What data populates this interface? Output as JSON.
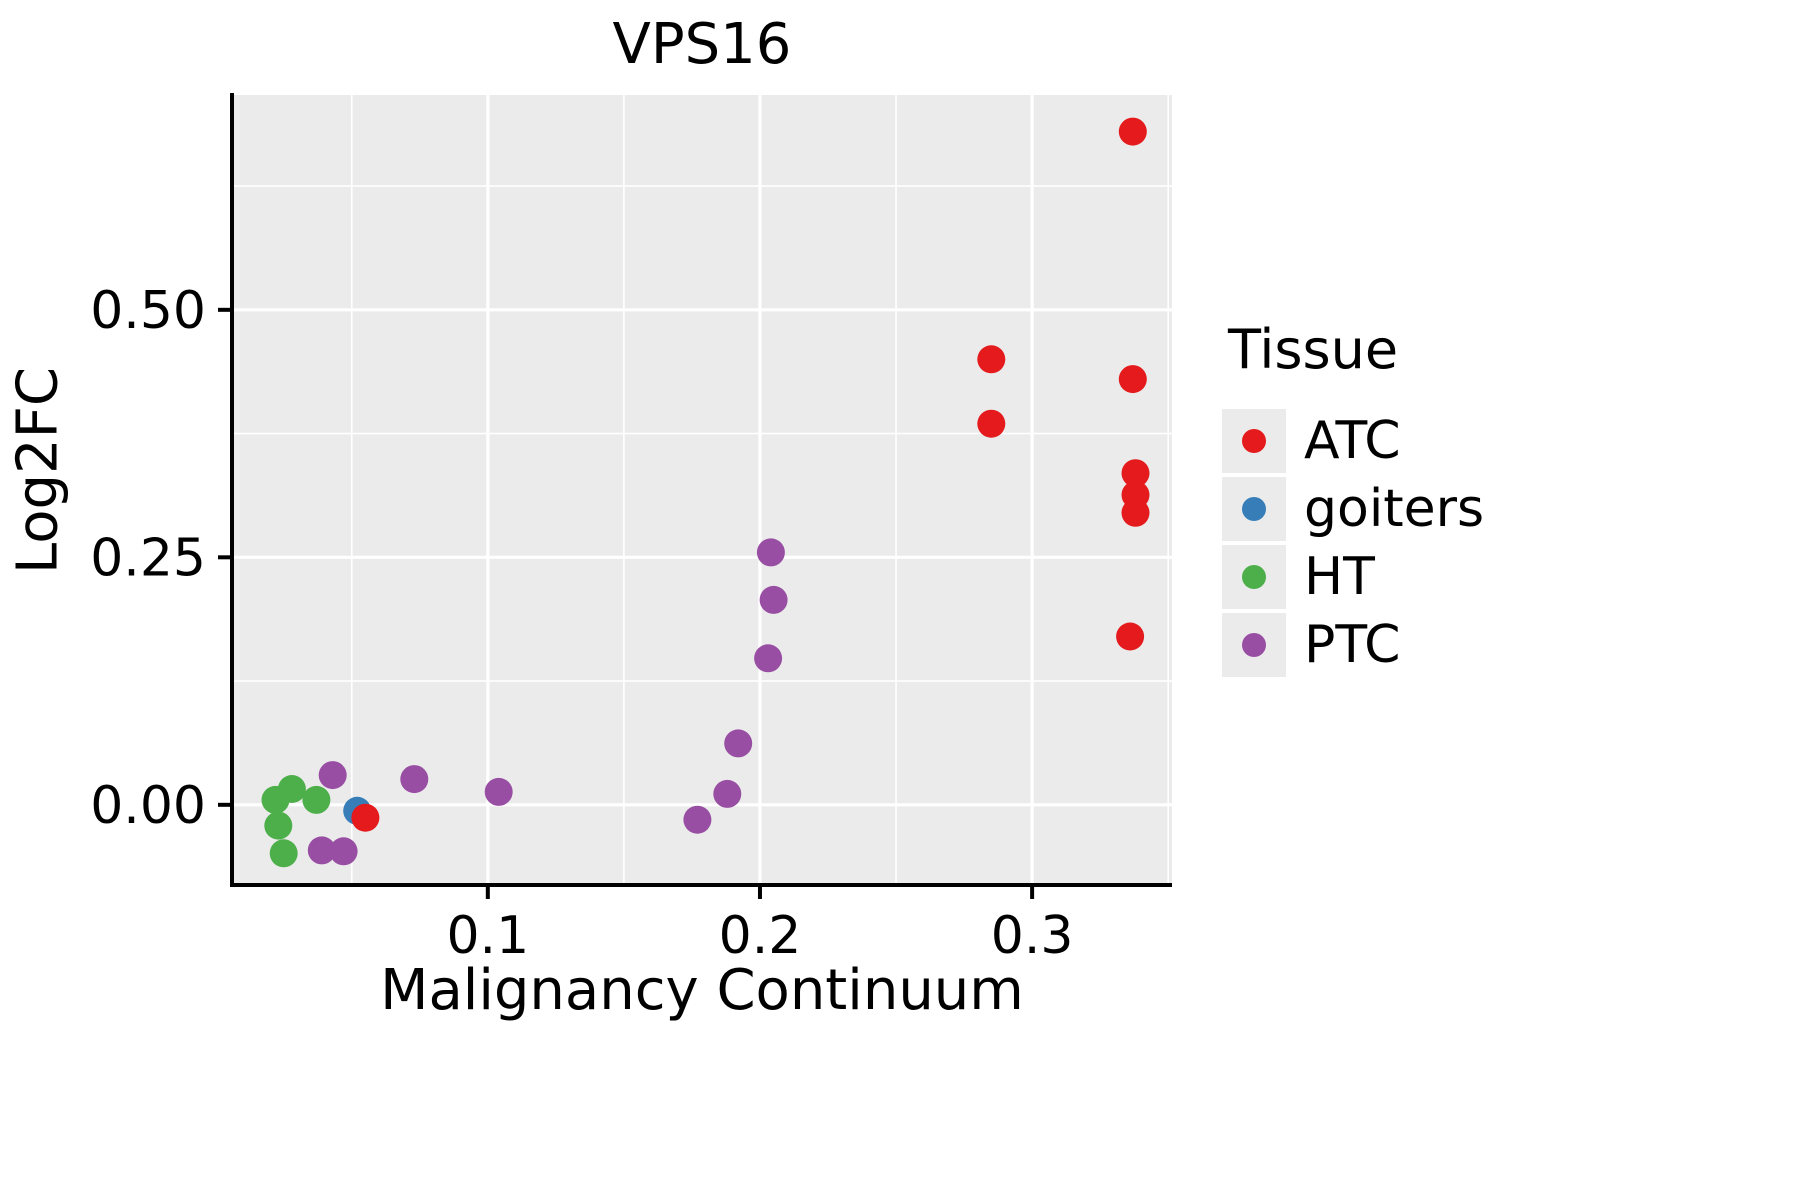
{
  "title": "VPS16",
  "xlabel": "Malignancy Continuum",
  "ylabel": "Log2FC",
  "legend": {
    "title": "Tissue",
    "entries": [
      "ATC",
      "goiters",
      "HT",
      "PTC"
    ]
  },
  "colors": {
    "panel_background": "#EBEBEB",
    "gridline": "#FFFFFF",
    "axis": "#000000",
    "ATC": "#E41A1C",
    "goiters": "#377EB8",
    "HT": "#4DAF4A",
    "PTC": "#984EA3"
  },
  "chart_data": {
    "type": "scatter",
    "title": "VPS16",
    "xlabel": "Malignancy Continuum",
    "ylabel": "Log2FC",
    "xlim": [
      0.006,
      0.3514
    ],
    "ylim": [
      -0.081,
      0.717
    ],
    "x_ticks": [
      0.1,
      0.2,
      0.3
    ],
    "x_tick_labels": [
      "0.1",
      "0.2",
      "0.3"
    ],
    "y_ticks": [
      0.0,
      0.25,
      0.5
    ],
    "y_tick_labels": [
      "0.00",
      "0.25",
      "0.50"
    ],
    "x_minor_ticks": [
      0.05,
      0.15,
      0.25,
      0.35
    ],
    "y_minor_ticks": [
      0.125,
      0.375,
      0.625
    ],
    "grid": true,
    "legend_position": "right",
    "legend_title": "Tissue",
    "draw_order": [
      "goiters",
      "HT",
      "PTC",
      "ATC"
    ],
    "series": [
      {
        "name": "ATC",
        "color": "#E41A1C",
        "points": [
          [
            0.337,
            0.68
          ],
          [
            0.285,
            0.45
          ],
          [
            0.285,
            0.385
          ],
          [
            0.337,
            0.43
          ],
          [
            0.338,
            0.335
          ],
          [
            0.338,
            0.313
          ],
          [
            0.338,
            0.295
          ],
          [
            0.336,
            0.17
          ],
          [
            0.055,
            -0.013
          ]
        ]
      },
      {
        "name": "goiters",
        "color": "#377EB8",
        "points": [
          [
            0.052,
            -0.006
          ]
        ]
      },
      {
        "name": "HT",
        "color": "#4DAF4A",
        "points": [
          [
            0.022,
            0.005
          ],
          [
            0.028,
            0.016
          ],
          [
            0.037,
            0.005
          ],
          [
            0.023,
            -0.021
          ],
          [
            0.025,
            -0.049
          ]
        ]
      },
      {
        "name": "PTC",
        "color": "#984EA3",
        "points": [
          [
            0.043,
            0.03
          ],
          [
            0.039,
            -0.046
          ],
          [
            0.047,
            -0.047
          ],
          [
            0.073,
            0.026
          ],
          [
            0.104,
            0.013
          ],
          [
            0.177,
            -0.015
          ],
          [
            0.188,
            0.011
          ],
          [
            0.192,
            0.062
          ],
          [
            0.204,
            0.255
          ],
          [
            0.205,
            0.207
          ],
          [
            0.203,
            0.148
          ]
        ]
      }
    ]
  }
}
